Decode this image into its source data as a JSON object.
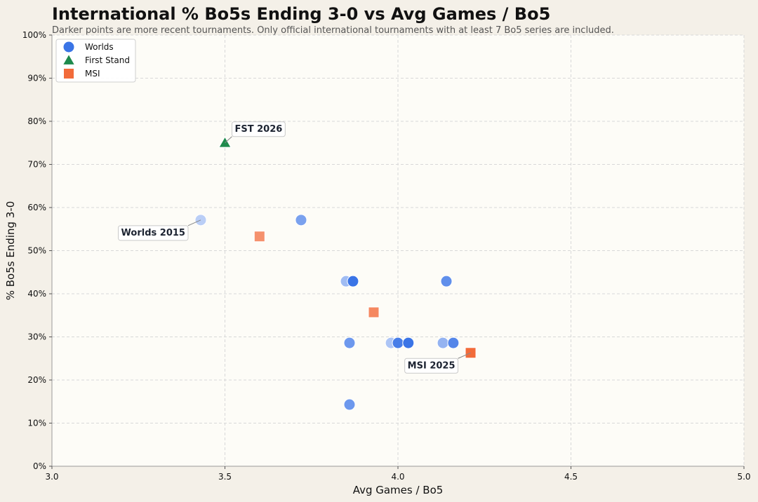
{
  "chart_data": {
    "type": "scatter",
    "title": "International % Bo5s Ending 3-0 vs Avg Games / Bo5",
    "subtitle": "Darker points are more recent tournaments. Only official international tournaments with at least 7 Bo5 series are included.",
    "xlabel": "Avg Games / Bo5",
    "ylabel": "% Bo5s Ending 3-0",
    "xlim": [
      3.0,
      5.0
    ],
    "ylim": [
      0,
      100
    ],
    "x_ticks": [
      {
        "value": 3.0,
        "label": "3.0"
      },
      {
        "value": 3.5,
        "label": "3.5"
      },
      {
        "value": 4.0,
        "label": "4.0"
      },
      {
        "value": 4.5,
        "label": "4.5"
      },
      {
        "value": 5.0,
        "label": "5.0"
      }
    ],
    "y_ticks": [
      {
        "value": 0,
        "label": "0%"
      },
      {
        "value": 10,
        "label": "10%"
      },
      {
        "value": 20,
        "label": "20%"
      },
      {
        "value": 30,
        "label": "30%"
      },
      {
        "value": 40,
        "label": "40%"
      },
      {
        "value": 50,
        "label": "50%"
      },
      {
        "value": 60,
        "label": "60%"
      },
      {
        "value": 70,
        "label": "70%"
      },
      {
        "value": 80,
        "label": "80%"
      },
      {
        "value": 90,
        "label": "90%"
      },
      {
        "value": 100,
        "label": "100%"
      }
    ],
    "grid": true,
    "legend_position": "top-left",
    "series": [
      {
        "name": "Worlds",
        "marker": "circle",
        "color": "#3a74e6",
        "points": [
          {
            "x": 3.43,
            "y": 57.1,
            "recency": 0.0
          },
          {
            "x": 3.72,
            "y": 57.1,
            "recency": 0.5
          },
          {
            "x": 3.85,
            "y": 42.9,
            "recency": 0.2
          },
          {
            "x": 3.87,
            "y": 42.9,
            "recency": 1.0
          },
          {
            "x": 4.14,
            "y": 42.9,
            "recency": 0.7
          },
          {
            "x": 3.86,
            "y": 28.6,
            "recency": 0.6
          },
          {
            "x": 3.98,
            "y": 28.6,
            "recency": 0.1
          },
          {
            "x": 4.0,
            "y": 28.6,
            "recency": 0.9
          },
          {
            "x": 4.03,
            "y": 28.6,
            "recency": 1.0
          },
          {
            "x": 4.13,
            "y": 28.6,
            "recency": 0.3
          },
          {
            "x": 4.16,
            "y": 28.6,
            "recency": 0.8
          },
          {
            "x": 3.86,
            "y": 14.3,
            "recency": 0.6
          }
        ]
      },
      {
        "name": "First Stand",
        "marker": "triangle",
        "color": "#1e8a4c",
        "points": [
          {
            "x": 3.5,
            "y": 75.0,
            "recency": 1.0
          }
        ]
      },
      {
        "name": "MSI",
        "marker": "square",
        "color": "#f26b3a",
        "points": [
          {
            "x": 3.6,
            "y": 53.3,
            "recency": 0.6
          },
          {
            "x": 3.93,
            "y": 35.7,
            "recency": 0.7
          },
          {
            "x": 4.21,
            "y": 26.3,
            "recency": 1.0
          }
        ]
      }
    ],
    "annotations": [
      {
        "text": "FST 2026",
        "x": 3.5,
        "y": 75.0,
        "placement": "upper-right"
      },
      {
        "text": "Worlds 2015",
        "x": 3.43,
        "y": 57.1,
        "placement": "lower-left"
      },
      {
        "text": "MSI 2025",
        "x": 4.21,
        "y": 26.3,
        "placement": "lower-left"
      }
    ]
  }
}
